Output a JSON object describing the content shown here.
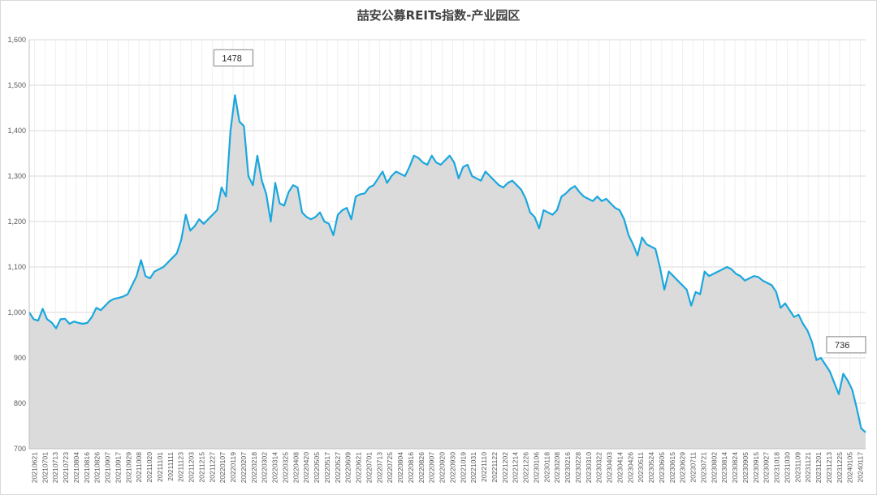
{
  "chart_data": {
    "type": "area",
    "title": "喆安公募REITs指数-产业园区",
    "xlabel": "",
    "ylabel": "",
    "ylim": [
      700,
      1600
    ],
    "yticks": [
      700,
      800,
      900,
      1000,
      1100,
      1200,
      1300,
      1400,
      1500,
      1600
    ],
    "ytick_labels": [
      "700",
      "800",
      "900",
      "1,000",
      "1,100",
      "1,200",
      "1,300",
      "1,400",
      "1,500",
      "1,600"
    ],
    "xtick_labels": [
      "20210621",
      "20210701",
      "20210713",
      "20210723",
      "20210804",
      "20210816",
      "20210826",
      "20210907",
      "20210917",
      "20210929",
      "20211008",
      "20211020",
      "20211101",
      "20211111",
      "20211123",
      "20211203",
      "20211215",
      "20211227",
      "20220107",
      "20220119",
      "20220207",
      "20220218",
      "20220302",
      "20220314",
      "20220325",
      "20220408",
      "20220420",
      "20220505",
      "20220517",
      "20220527",
      "20220609",
      "20220621",
      "20220701",
      "20220713",
      "20220725",
      "20220804",
      "20220816",
      "20220826",
      "20220907",
      "20220920",
      "20220930",
      "20221019",
      "20221031",
      "20221110",
      "20221122",
      "20221202",
      "20221214",
      "20221226",
      "20230106",
      "20230118",
      "20230208",
      "20230216",
      "20230228",
      "20230310",
      "20230322",
      "20230403",
      "20230414",
      "20230426",
      "20230511",
      "20230524",
      "20230605",
      "20230615",
      "20230629",
      "20230711",
      "20230721",
      "20230802",
      "20230814",
      "20230824",
      "20230905",
      "20230915",
      "20230927",
      "20231018",
      "20231030",
      "20231109",
      "20231121",
      "20231201",
      "20231213",
      "20231225",
      "20240105",
      "20240117"
    ],
    "series": [
      {
        "values": [
          1000,
          985,
          982,
          1008,
          985,
          978,
          965,
          985,
          986,
          975,
          980,
          977,
          975,
          977,
          990,
          1010,
          1005,
          1015,
          1025,
          1030,
          1032,
          1035,
          1040,
          1060,
          1080,
          1115,
          1080,
          1075,
          1090,
          1095,
          1100,
          1110,
          1120,
          1130,
          1160,
          1215,
          1180,
          1190,
          1205,
          1195,
          1205,
          1215,
          1225,
          1275,
          1255,
          1400,
          1478,
          1420,
          1410,
          1300,
          1280,
          1345,
          1290,
          1260,
          1200,
          1285,
          1240,
          1235,
          1265,
          1280,
          1275,
          1220,
          1210,
          1205,
          1210,
          1220,
          1200,
          1195,
          1170,
          1215,
          1225,
          1230,
          1205,
          1255,
          1260,
          1262,
          1275,
          1280,
          1295,
          1310,
          1285,
          1300,
          1310,
          1305,
          1300,
          1320,
          1345,
          1340,
          1330,
          1325,
          1345,
          1330,
          1325,
          1335,
          1345,
          1330,
          1295,
          1320,
          1325,
          1300,
          1295,
          1290,
          1310,
          1300,
          1290,
          1280,
          1275,
          1285,
          1290,
          1280,
          1270,
          1250,
          1220,
          1210,
          1185,
          1225,
          1220,
          1215,
          1225,
          1255,
          1262,
          1272,
          1278,
          1265,
          1255,
          1250,
          1245,
          1255,
          1245,
          1250,
          1240,
          1230,
          1225,
          1205,
          1170,
          1150,
          1125,
          1165,
          1150,
          1145,
          1140,
          1100,
          1050,
          1090,
          1080,
          1070,
          1060,
          1050,
          1015,
          1045,
          1040,
          1090,
          1080,
          1085,
          1090,
          1095,
          1100,
          1095,
          1085,
          1080,
          1070,
          1075,
          1080,
          1078,
          1070,
          1065,
          1060,
          1045,
          1010,
          1020,
          1005,
          990,
          995,
          975,
          960,
          935,
          895,
          900,
          885,
          870,
          845,
          820,
          865,
          850,
          830,
          790,
          745,
          736
        ]
      }
    ],
    "annotations": [
      {
        "text": "1478",
        "x_index": 46,
        "value": 1478
      },
      {
        "text": "736",
        "x_index": 199,
        "value": 736
      }
    ],
    "line_color": "#1aa7de",
    "area_color": "#d9d9d9",
    "grid": true,
    "legend": "none"
  }
}
